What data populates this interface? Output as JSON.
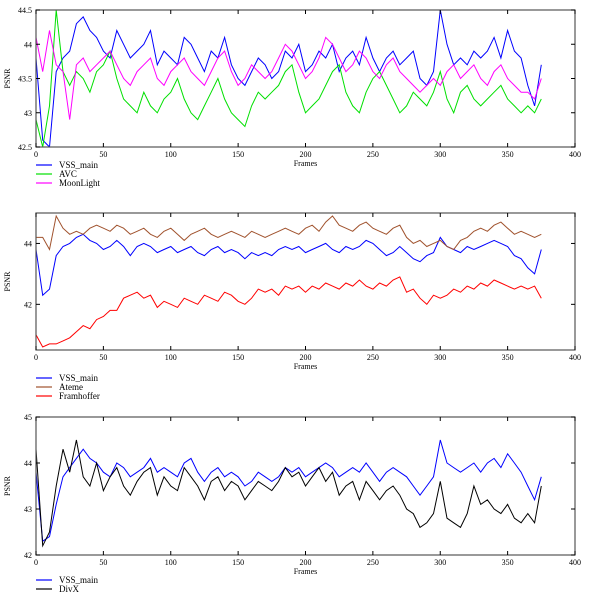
{
  "chart_data": [
    {
      "type": "line",
      "xlabel": "Frames",
      "ylabel": "PSNR",
      "xlim": [
        0,
        400
      ],
      "ylim": [
        42.5,
        44.5
      ],
      "xticks": [
        "0",
        "50",
        "100",
        "150",
        "200",
        "250",
        "300",
        "350",
        "400"
      ],
      "yticks": [
        "42.5",
        "43",
        "43.5",
        "44",
        "44.5"
      ],
      "x_step": 5,
      "series": [
        {
          "name": "VSS_main",
          "color": "#0000ff",
          "values": [
            43.8,
            42.6,
            42.5,
            43.6,
            43.8,
            43.9,
            44.3,
            44.4,
            44.2,
            44.1,
            43.9,
            43.8,
            44.2,
            44.0,
            43.8,
            43.9,
            44.0,
            44.2,
            43.7,
            43.9,
            43.8,
            43.7,
            44.1,
            44.0,
            43.8,
            43.6,
            43.9,
            43.8,
            44.1,
            43.7,
            43.5,
            43.4,
            43.6,
            43.8,
            43.7,
            43.5,
            43.6,
            43.9,
            43.8,
            44.0,
            43.6,
            43.7,
            43.9,
            43.8,
            44.0,
            43.6,
            43.8,
            43.9,
            43.7,
            44.1,
            43.8,
            43.6,
            43.8,
            43.9,
            43.7,
            43.8,
            43.9,
            43.5,
            43.4,
            43.6,
            44.5,
            44.0,
            43.7,
            43.8,
            43.7,
            43.9,
            43.8,
            43.9,
            44.1,
            43.8,
            44.2,
            43.9,
            43.8,
            43.4,
            43.1,
            43.7
          ]
        },
        {
          "name": "AVC",
          "color": "#00e000",
          "values": [
            42.9,
            42.5,
            43.1,
            44.5,
            43.6,
            43.4,
            43.6,
            43.5,
            43.3,
            43.6,
            43.7,
            43.9,
            43.5,
            43.2,
            43.1,
            43.0,
            43.3,
            43.1,
            43.0,
            43.2,
            43.3,
            43.5,
            43.2,
            43.0,
            42.9,
            43.1,
            43.3,
            43.5,
            43.2,
            43.0,
            42.9,
            42.8,
            43.1,
            43.3,
            43.2,
            43.3,
            43.4,
            43.6,
            43.7,
            43.3,
            43.0,
            43.1,
            43.2,
            43.4,
            43.6,
            43.7,
            43.3,
            43.1,
            43.0,
            43.3,
            43.5,
            43.6,
            43.4,
            43.2,
            43.0,
            43.1,
            43.3,
            43.2,
            43.1,
            43.3,
            43.6,
            43.2,
            43.0,
            43.3,
            43.4,
            43.2,
            43.1,
            43.2,
            43.3,
            43.4,
            43.2,
            43.1,
            43.0,
            43.1,
            43.0,
            43.2
          ]
        },
        {
          "name": "MoonLight",
          "color": "#ff00ff",
          "values": [
            44.1,
            43.6,
            44.2,
            43.7,
            43.6,
            42.9,
            43.7,
            43.8,
            43.6,
            43.7,
            43.8,
            43.9,
            43.7,
            43.5,
            43.4,
            43.6,
            43.7,
            43.8,
            43.5,
            43.4,
            43.6,
            43.7,
            43.8,
            43.6,
            43.5,
            43.4,
            43.6,
            43.8,
            43.9,
            43.6,
            43.4,
            43.5,
            43.7,
            43.6,
            43.5,
            43.6,
            43.8,
            44.0,
            43.9,
            43.7,
            43.5,
            43.6,
            43.8,
            44.1,
            44.0,
            43.8,
            43.6,
            43.7,
            43.9,
            43.8,
            43.6,
            43.5,
            43.7,
            43.8,
            43.6,
            43.5,
            43.4,
            43.3,
            43.4,
            43.5,
            43.4,
            43.6,
            43.7,
            43.5,
            43.6,
            43.7,
            43.5,
            43.4,
            43.6,
            43.7,
            43.5,
            43.4,
            43.3,
            43.3,
            43.2,
            43.5
          ]
        }
      ]
    },
    {
      "type": "line",
      "xlabel": "Frames",
      "ylabel": "PSNR",
      "xlim": [
        0,
        400
      ],
      "ylim": [
        40.5,
        45
      ],
      "xticks": [
        "0",
        "50",
        "100",
        "150",
        "200",
        "250",
        "300",
        "350",
        "400"
      ],
      "yticks": [
        "42",
        "44"
      ],
      "x_step": 5,
      "series": [
        {
          "name": "VSS_main",
          "color": "#0000ff",
          "values": [
            43.8,
            42.3,
            42.5,
            43.6,
            43.9,
            44.0,
            44.2,
            44.3,
            44.1,
            44.0,
            43.8,
            43.9,
            44.1,
            43.9,
            43.6,
            43.9,
            44.0,
            43.9,
            43.7,
            43.8,
            43.9,
            43.7,
            43.8,
            43.9,
            43.7,
            43.6,
            43.8,
            43.9,
            43.7,
            43.8,
            43.7,
            43.5,
            43.7,
            43.6,
            43.7,
            43.6,
            43.8,
            43.9,
            43.8,
            43.9,
            43.7,
            43.8,
            43.9,
            44.0,
            43.8,
            43.7,
            43.9,
            43.8,
            43.9,
            44.1,
            44.0,
            43.8,
            43.6,
            43.7,
            43.9,
            43.7,
            43.5,
            43.4,
            43.6,
            43.7,
            44.2,
            43.9,
            43.8,
            43.7,
            43.9,
            43.8,
            43.9,
            44.0,
            44.1,
            44.0,
            43.9,
            43.6,
            43.5,
            43.2,
            43.0,
            43.8
          ]
        },
        {
          "name": "Ateme",
          "color": "#a0522d",
          "values": [
            44.2,
            44.2,
            43.8,
            44.9,
            44.5,
            44.3,
            44.4,
            44.3,
            44.5,
            44.6,
            44.5,
            44.4,
            44.6,
            44.5,
            44.3,
            44.4,
            44.5,
            44.3,
            44.2,
            44.4,
            44.5,
            44.3,
            44.1,
            44.3,
            44.4,
            44.5,
            44.3,
            44.2,
            44.3,
            44.4,
            44.3,
            44.2,
            44.4,
            44.3,
            44.2,
            44.3,
            44.4,
            44.5,
            44.4,
            44.3,
            44.5,
            44.6,
            44.4,
            44.7,
            44.9,
            44.6,
            44.5,
            44.4,
            44.6,
            44.7,
            44.5,
            44.4,
            44.3,
            44.5,
            44.6,
            44.2,
            44.0,
            44.1,
            43.9,
            44.0,
            44.1,
            43.9,
            43.8,
            44.1,
            44.2,
            44.4,
            44.5,
            44.4,
            44.6,
            44.7,
            44.5,
            44.3,
            44.4,
            44.3,
            44.2,
            44.3
          ]
        },
        {
          "name": "Framhoffer",
          "color": "#ff0000",
          "values": [
            41.0,
            40.6,
            40.7,
            40.7,
            40.8,
            40.9,
            41.1,
            41.3,
            41.2,
            41.5,
            41.6,
            41.8,
            41.8,
            42.2,
            42.3,
            42.4,
            42.2,
            42.3,
            41.9,
            42.1,
            42.0,
            41.9,
            42.2,
            42.1,
            42.0,
            42.3,
            42.2,
            42.1,
            42.4,
            42.3,
            42.1,
            42.0,
            42.2,
            42.5,
            42.4,
            42.5,
            42.3,
            42.6,
            42.5,
            42.6,
            42.4,
            42.6,
            42.5,
            42.7,
            42.6,
            42.5,
            42.7,
            42.6,
            42.8,
            42.6,
            42.5,
            42.7,
            42.6,
            42.8,
            42.9,
            42.4,
            42.5,
            42.2,
            42.0,
            42.3,
            42.2,
            42.3,
            42.5,
            42.4,
            42.6,
            42.5,
            42.7,
            42.6,
            42.8,
            42.7,
            42.6,
            42.5,
            42.6,
            42.5,
            42.6,
            42.2
          ]
        }
      ]
    },
    {
      "type": "line",
      "xlabel": "Frames",
      "ylabel": "PSNR",
      "xlim": [
        0,
        400
      ],
      "ylim": [
        42,
        45
      ],
      "xticks": [
        "0",
        "50",
        "100",
        "150",
        "200",
        "250",
        "300",
        "350",
        "400"
      ],
      "yticks": [
        "42",
        "43",
        "44",
        "45"
      ],
      "x_step": 5,
      "series": [
        {
          "name": "VSS_main",
          "color": "#0000ff",
          "values": [
            43.8,
            42.3,
            42.4,
            43.1,
            43.7,
            43.9,
            44.1,
            44.3,
            44.1,
            44.0,
            43.8,
            43.7,
            44.0,
            43.9,
            43.7,
            43.8,
            43.9,
            44.1,
            43.8,
            43.9,
            43.8,
            43.7,
            44.0,
            44.1,
            43.8,
            43.6,
            43.8,
            43.9,
            43.7,
            43.8,
            43.7,
            43.5,
            43.6,
            43.8,
            43.7,
            43.6,
            43.7,
            43.9,
            43.8,
            43.9,
            43.7,
            43.8,
            43.9,
            44.0,
            43.9,
            43.7,
            43.8,
            43.9,
            43.8,
            44.0,
            43.8,
            43.6,
            43.8,
            43.9,
            43.8,
            43.7,
            43.5,
            43.3,
            43.5,
            43.7,
            44.5,
            44.0,
            43.9,
            43.8,
            43.9,
            44.0,
            43.8,
            44.0,
            44.1,
            43.9,
            44.2,
            44.0,
            43.8,
            43.5,
            43.2,
            43.7
          ]
        },
        {
          "name": "DivX",
          "color": "#000000",
          "values": [
            44.3,
            42.2,
            42.5,
            43.5,
            44.3,
            43.8,
            44.5,
            43.7,
            43.5,
            44.0,
            43.4,
            43.7,
            43.9,
            43.5,
            43.3,
            43.6,
            43.8,
            43.9,
            43.3,
            43.7,
            43.5,
            43.4,
            43.9,
            43.7,
            43.5,
            43.2,
            43.6,
            43.7,
            43.4,
            43.6,
            43.5,
            43.2,
            43.4,
            43.6,
            43.5,
            43.4,
            43.6,
            43.9,
            43.7,
            43.8,
            43.5,
            43.7,
            43.9,
            43.6,
            43.8,
            43.3,
            43.5,
            43.6,
            43.2,
            43.6,
            43.4,
            43.2,
            43.4,
            43.5,
            43.3,
            43.0,
            42.9,
            42.6,
            42.7,
            42.9,
            43.6,
            42.8,
            42.7,
            42.6,
            42.9,
            43.5,
            43.1,
            43.2,
            43.0,
            42.9,
            43.1,
            42.8,
            42.7,
            42.9,
            42.7,
            43.5
          ]
        }
      ]
    }
  ]
}
